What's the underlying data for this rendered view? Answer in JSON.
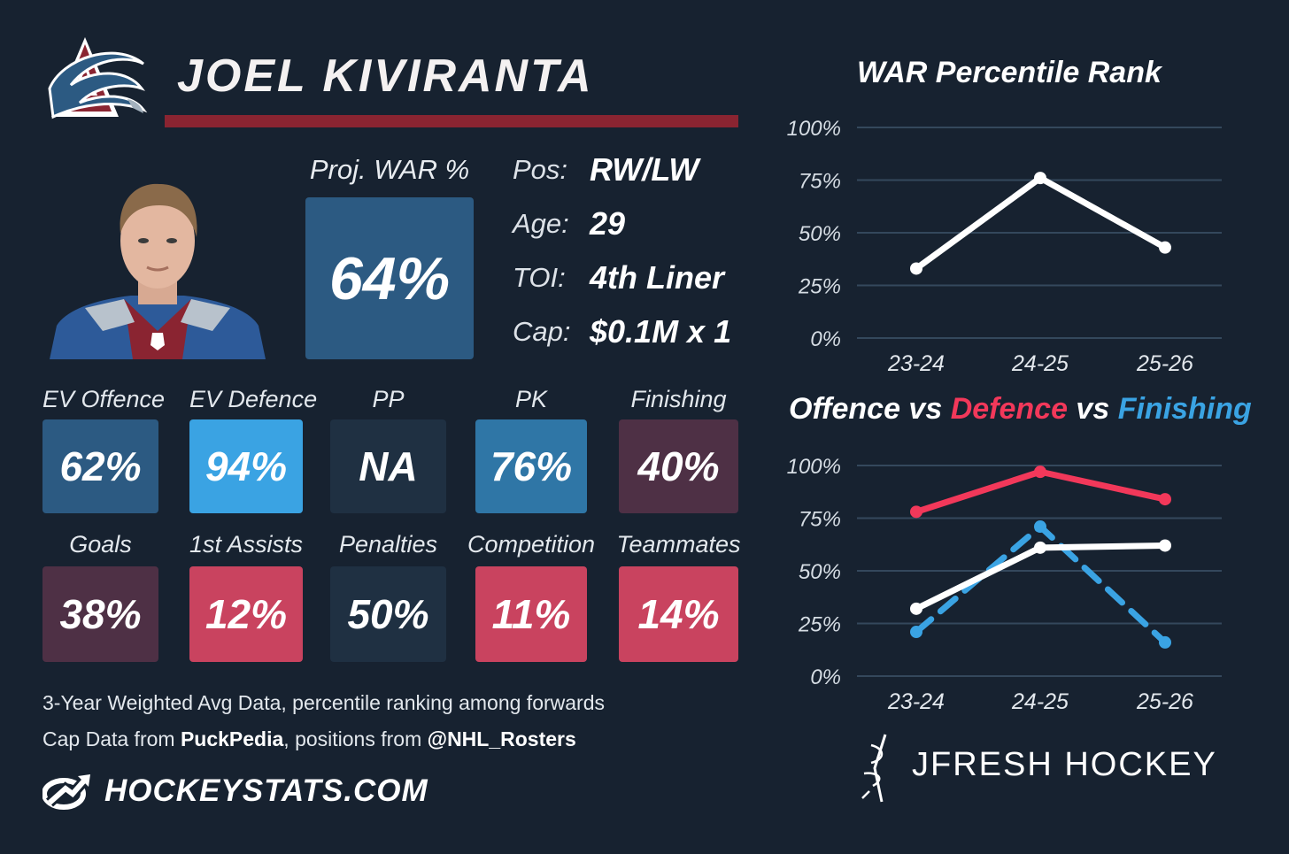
{
  "player": {
    "name": "JOEL KIVIRANTA"
  },
  "proj_war": {
    "label": "Proj. WAR %",
    "value": "64%"
  },
  "info": [
    {
      "label": "Pos:",
      "value": "RW/LW"
    },
    {
      "label": "Age:",
      "value": "29"
    },
    {
      "label": "TOI:",
      "value": "4th Liner"
    },
    {
      "label": "Cap:",
      "value": "$0.1M x 1"
    }
  ],
  "stats_row1": [
    {
      "label": "EV Offence",
      "value": "62%",
      "color": "#2c5a82"
    },
    {
      "label": "EV Defence",
      "value": "94%",
      "color": "#3aa3e3"
    },
    {
      "label": "PP",
      "value": "NA",
      "color": "#1f3042"
    },
    {
      "label": "PK",
      "value": "76%",
      "color": "#2f76a6"
    },
    {
      "label": "Finishing",
      "value": "40%",
      "color": "#4e3045"
    }
  ],
  "stats_row2": [
    {
      "label": "Goals",
      "value": "38%",
      "color": "#4e3045"
    },
    {
      "label": "1st Assists",
      "value": "12%",
      "color": "#c9435f"
    },
    {
      "label": "Penalties",
      "value": "50%",
      "color": "#1f3042"
    },
    {
      "label": "Competition",
      "value": "11%",
      "color": "#c9435f"
    },
    {
      "label": "Teammates",
      "value": "14%",
      "color": "#c9435f"
    }
  ],
  "footer": {
    "line1": "3-Year Weighted Avg Data, percentile ranking among forwards",
    "line2_pre": "Cap Data from ",
    "line2_bold1": "PuckPedia",
    "line2_mid": ", positions from ",
    "line2_bold2": "@NHL_Rosters",
    "site": "HOCKEYSTATS.COM",
    "brand": "JFRESH HOCKEY"
  },
  "chart_titles": {
    "war": "WAR Percentile Rank",
    "cmp_offence": "Offence",
    "cmp_vs1": " vs ",
    "cmp_defence": "Defence",
    "cmp_vs2": " vs ",
    "cmp_finishing": "Finishing"
  },
  "chart_data": [
    {
      "type": "line",
      "title": "WAR Percentile Rank",
      "categories": [
        "23-24",
        "24-25",
        "25-26"
      ],
      "yticks": [
        "100%",
        "75%",
        "50%",
        "25%",
        "0%"
      ],
      "ylim": [
        0,
        100
      ],
      "grid": true,
      "series": [
        {
          "values": [
            33,
            76,
            43
          ],
          "color": "#ffffff",
          "dashed": false
        }
      ]
    },
    {
      "type": "line",
      "title": "Offence vs Defence vs Finishing",
      "categories": [
        "23-24",
        "24-25",
        "25-26"
      ],
      "yticks": [
        "100%",
        "75%",
        "50%",
        "25%",
        "0%"
      ],
      "ylim": [
        0,
        100
      ],
      "grid": true,
      "series": [
        {
          "name": "Defence",
          "values": [
            78,
            97,
            84
          ],
          "color": "#f2385a",
          "dashed": false
        },
        {
          "name": "Finishing",
          "values": [
            21,
            71,
            16
          ],
          "color": "#3aa3e3",
          "dashed": true
        },
        {
          "name": "Offence",
          "values": [
            32,
            61,
            62
          ],
          "color": "#ffffff",
          "dashed": false
        }
      ]
    }
  ]
}
